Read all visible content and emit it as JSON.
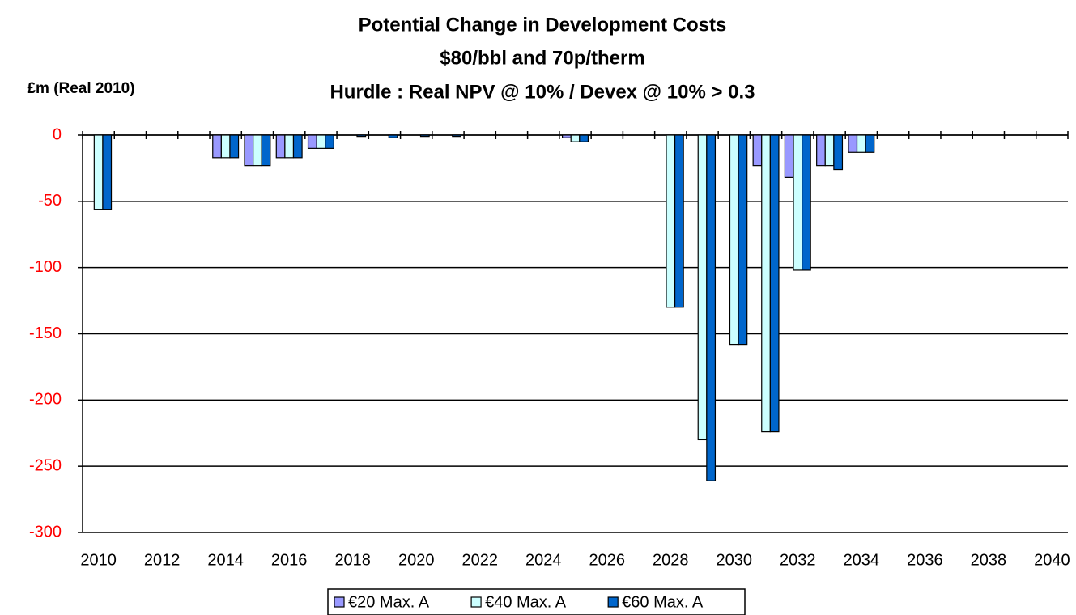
{
  "chart_data": {
    "type": "bar",
    "title": [
      "Potential Change in Development Costs",
      "$80/bbl and 70p/therm",
      "Hurdle : Real NPV @ 10% /  Devex @ 10% > 0.3"
    ],
    "y_label": "£m (Real 2010)",
    "categories": [
      "2010",
      null,
      "2012",
      null,
      "2014",
      null,
      "2016",
      null,
      "2018",
      null,
      "2020",
      null,
      "2022",
      null,
      "2024",
      null,
      "2026",
      null,
      "2028",
      null,
      "2030",
      null,
      "2032",
      null,
      "2034",
      null,
      "2036",
      null,
      "2038",
      null,
      "2040"
    ],
    "series": [
      {
        "name": "€20 Max. A",
        "color": "#9999ff",
        "values": [
          0,
          0,
          0,
          0,
          -17,
          -23,
          -17,
          -10,
          0,
          0,
          0,
          0,
          0,
          0,
          0,
          -2,
          0,
          0,
          0,
          0,
          0,
          -23,
          -32,
          -23,
          -13,
          0,
          0,
          0,
          0,
          0,
          0
        ]
      },
      {
        "name": "€40 Max. A",
        "color": "#ccffff",
        "values": [
          -56,
          0,
          0,
          0,
          -17,
          -23,
          -17,
          -10,
          0,
          0,
          0,
          0,
          0,
          0,
          0,
          -5,
          0,
          0,
          -130,
          -230,
          -158,
          -224,
          -102,
          -23,
          -13,
          0,
          0,
          0,
          0,
          0,
          0
        ]
      },
      {
        "name": "€60 Max. A",
        "color": "#0066cc",
        "values": [
          -56,
          0,
          0,
          0,
          -17,
          -23,
          -17,
          -10,
          -1,
          -2,
          -1,
          -1,
          0,
          0,
          0,
          -5,
          0,
          0,
          -130,
          -261,
          -158,
          -224,
          -102,
          -26,
          -13,
          0,
          0,
          0,
          0,
          0,
          0
        ]
      }
    ],
    "ylim": [
      -300,
      0
    ],
    "yticks": [
      0,
      -50,
      -100,
      -150,
      -200,
      -250,
      -300
    ],
    "grid": true,
    "legend": "bottom"
  }
}
